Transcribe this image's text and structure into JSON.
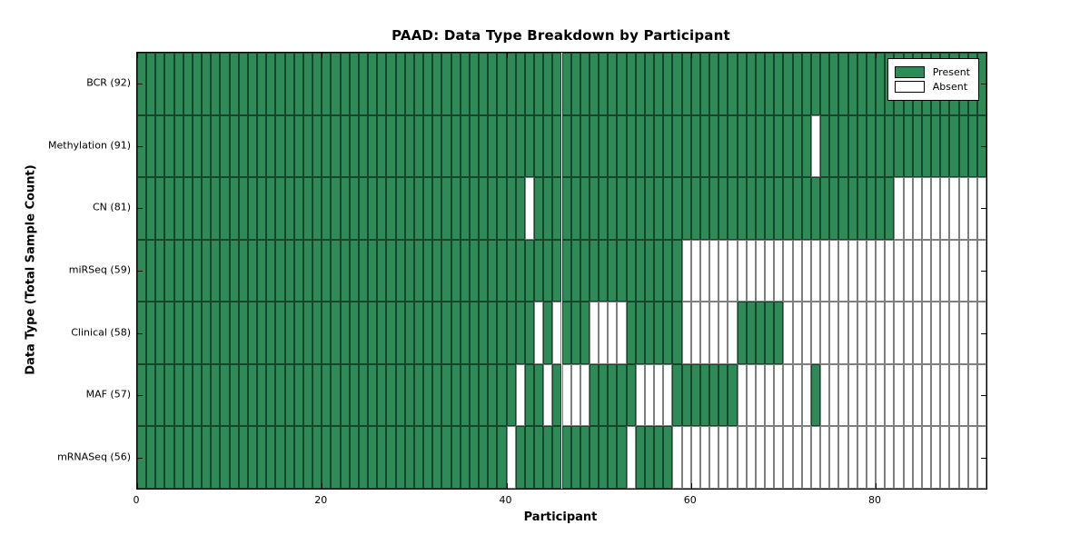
{
  "chart_data": {
    "type": "heatmap",
    "title": "PAAD: Data Type Breakdown by Participant",
    "xlabel": "Participant",
    "ylabel": "Data Type (Total Sample Count)",
    "x_ticks": [
      0,
      20,
      40,
      60,
      80
    ],
    "x_range": [
      0,
      92
    ],
    "n_participants": 92,
    "grid": "cell borders on",
    "legend_position": "upper right",
    "legend": [
      {
        "label": "Present",
        "color": "#2E8B57"
      },
      {
        "label": "Absent",
        "color": "#FFFFFF"
      }
    ],
    "colors": {
      "present": "#2E8B57",
      "absent": "#FFFFFF",
      "cell_border": "rgba(0,0,0,0.5)",
      "axis": "#000000"
    },
    "rows": [
      {
        "label": "BCR (92)",
        "data_type": "BCR",
        "present_count": 92,
        "absent": []
      },
      {
        "label": "Methylation (91)",
        "data_type": "Methylation",
        "present_count": 91,
        "absent": [
          73
        ]
      },
      {
        "label": "CN (81)",
        "data_type": "CN",
        "present_count": 81,
        "absent": [
          42,
          82,
          83,
          84,
          85,
          86,
          87,
          88,
          89,
          90,
          91
        ]
      },
      {
        "label": "miRSeq (59)",
        "data_type": "miRSeq",
        "present_count": 59,
        "absent": [
          59,
          60,
          61,
          62,
          63,
          64,
          65,
          66,
          67,
          68,
          69,
          70,
          71,
          72,
          73,
          74,
          75,
          76,
          77,
          78,
          79,
          80,
          81,
          82,
          83,
          84,
          85,
          86,
          87,
          88,
          89,
          90,
          91
        ]
      },
      {
        "label": "Clinical (58)",
        "data_type": "Clinical",
        "present_count": 58,
        "absent": [
          43,
          45,
          49,
          50,
          51,
          52,
          59,
          60,
          61,
          62,
          63,
          64,
          70,
          71,
          72,
          73,
          74,
          75,
          76,
          77,
          78,
          79,
          80,
          81,
          82,
          83,
          84,
          85,
          86,
          87,
          88,
          89,
          90,
          91
        ]
      },
      {
        "label": "MAF (57)",
        "data_type": "MAF",
        "present_count": 57,
        "absent": [
          41,
          44,
          46,
          47,
          48,
          54,
          55,
          56,
          57,
          65,
          66,
          67,
          68,
          69,
          70,
          71,
          72,
          74,
          75,
          76,
          77,
          78,
          79,
          80,
          81,
          82,
          83,
          84,
          85,
          86,
          87,
          88,
          89,
          90,
          91
        ]
      },
      {
        "label": "mRNASeq (56)",
        "data_type": "mRNASeq",
        "present_count": 56,
        "absent": [
          40,
          53,
          58,
          59,
          60,
          61,
          62,
          63,
          64,
          65,
          66,
          67,
          68,
          69,
          70,
          71,
          72,
          73,
          74,
          75,
          76,
          77,
          78,
          79,
          80,
          81,
          82,
          83,
          84,
          85,
          86,
          87,
          88,
          89,
          90,
          91
        ]
      }
    ]
  }
}
